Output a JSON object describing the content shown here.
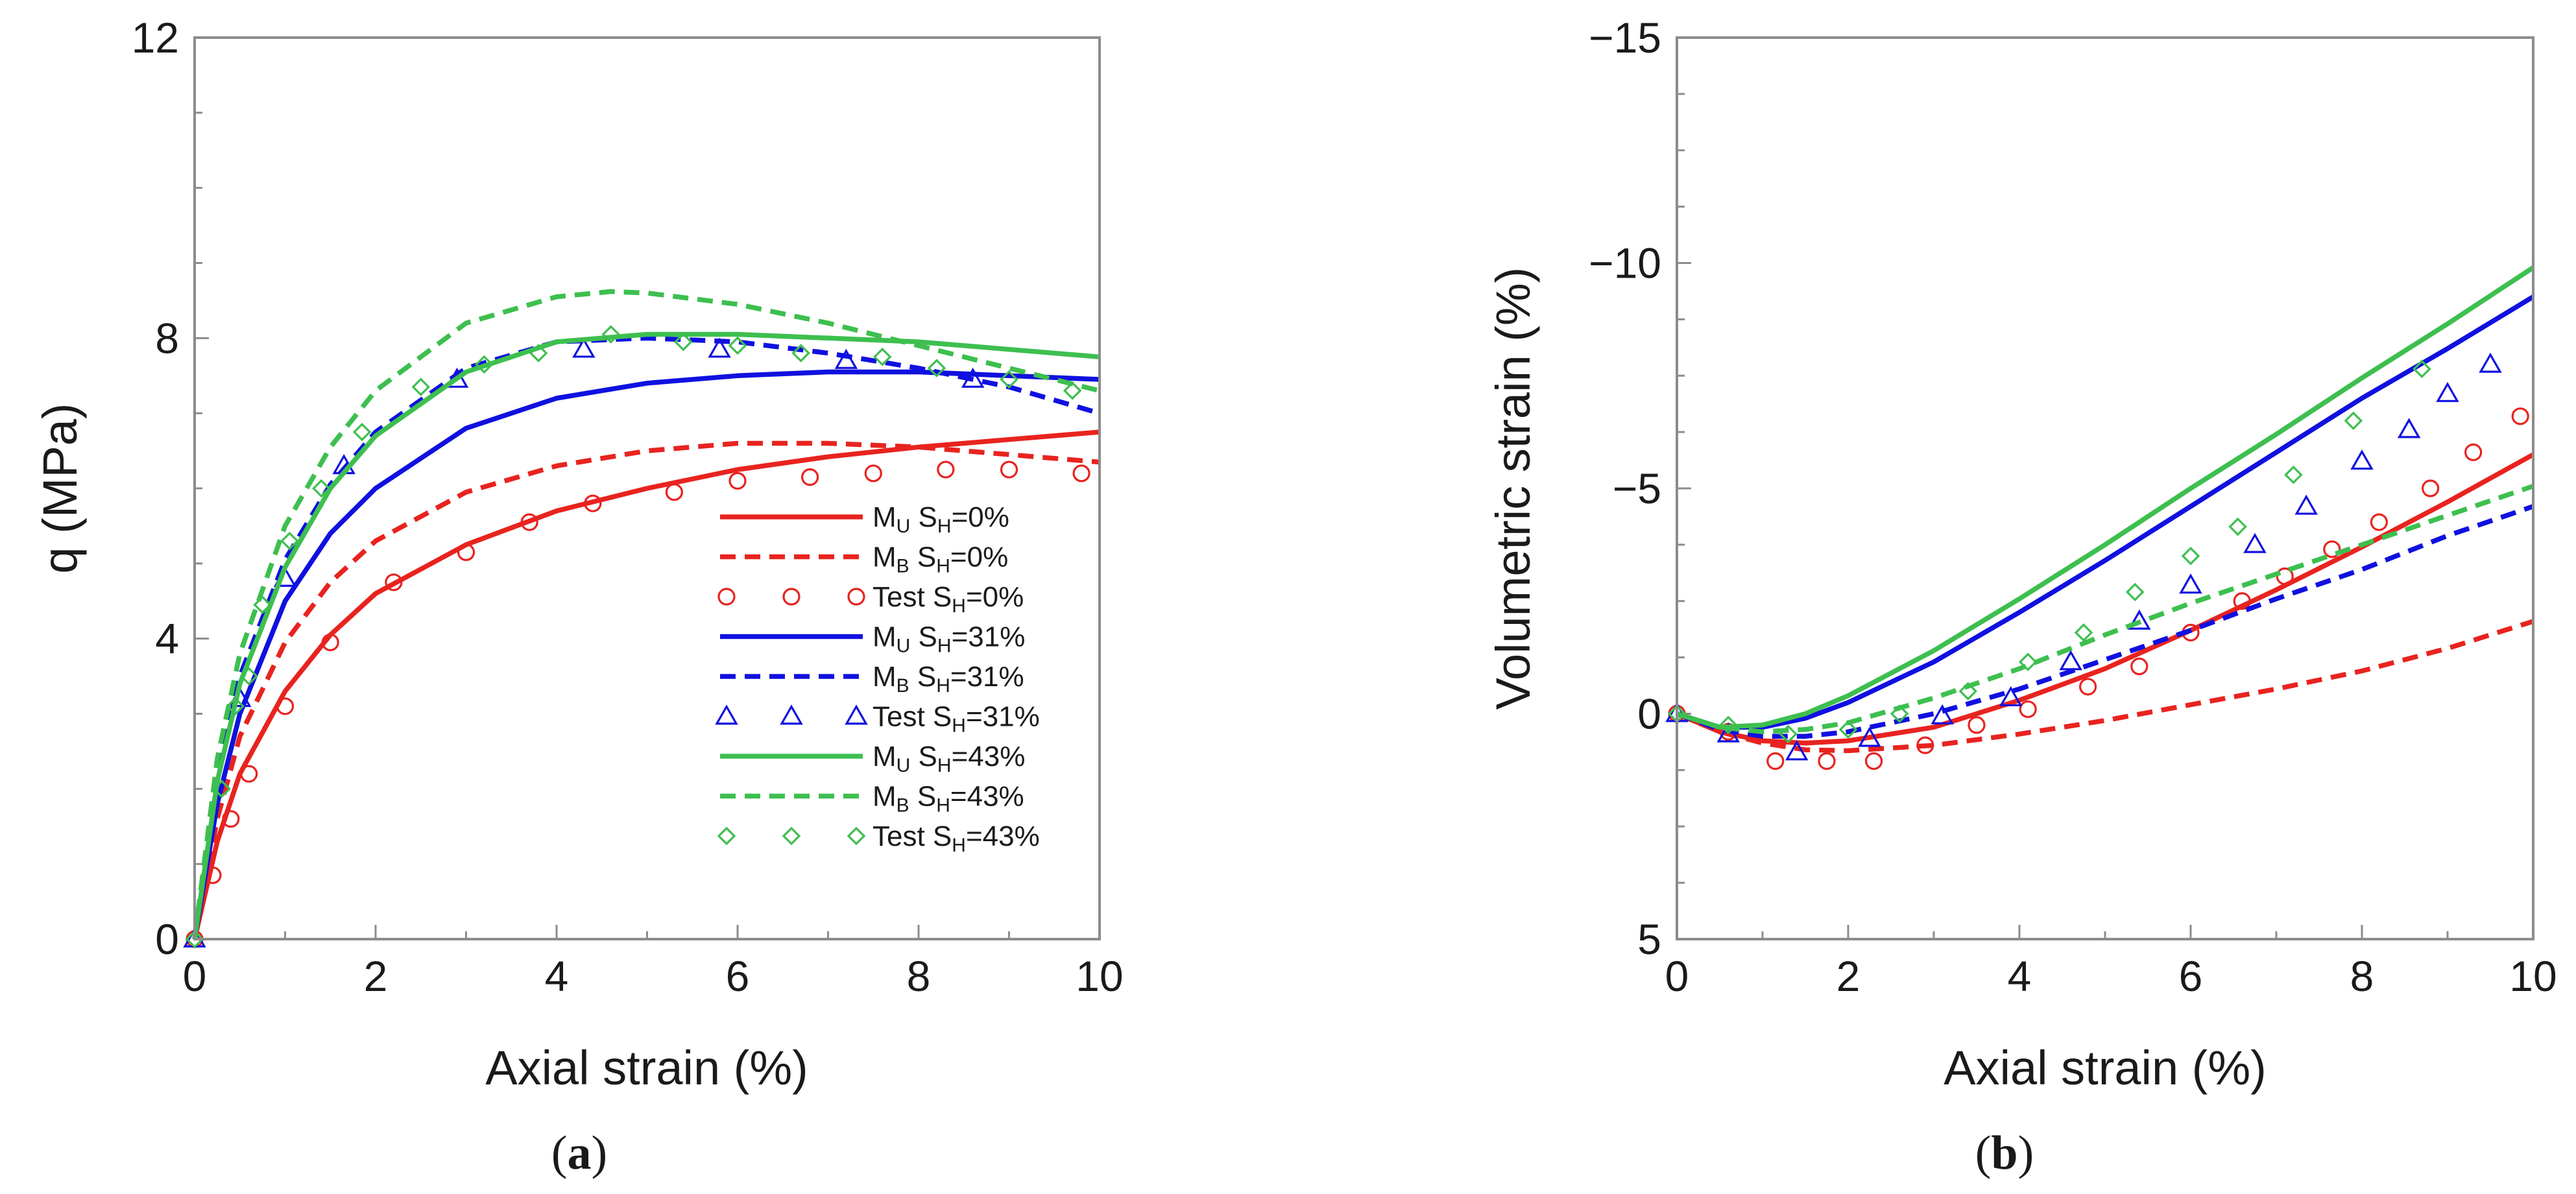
{
  "chart_data": [
    {
      "type": "line",
      "panel_label": "(a)",
      "panel_letter": "a",
      "xlabel": "Axial strain (%)",
      "ylabel": "q (MPa)",
      "xlim": [
        0,
        10
      ],
      "ylim": [
        0,
        12
      ],
      "xticks": [
        0,
        2,
        4,
        6,
        8,
        10
      ],
      "yticks": [
        0,
        4,
        8,
        12
      ],
      "x_tick_labels": [
        "0",
        "2",
        "4",
        "6",
        "8",
        "10"
      ],
      "y_tick_labels": [
        "0",
        "4",
        "8",
        "12"
      ],
      "legend_position": "lower-right",
      "series": [
        {
          "name": "MU SH=0%",
          "legend_main": "M",
          "legend_sub1": "U",
          "legend_mid": " S",
          "legend_sub2": "H",
          "legend_tail": "=0%",
          "style": "solid",
          "color": "#e8231f",
          "x": [
            0,
            0.25,
            0.5,
            1,
            1.5,
            2,
            3,
            4,
            5,
            6,
            7,
            8,
            9,
            10
          ],
          "y": [
            0,
            1.3,
            2.2,
            3.3,
            4.05,
            4.6,
            5.25,
            5.7,
            6.0,
            6.25,
            6.42,
            6.55,
            6.65,
            6.75
          ]
        },
        {
          "name": "MB SH=0%",
          "legend_main": "M",
          "legend_sub1": "B",
          "legend_mid": " S",
          "legend_sub2": "H",
          "legend_tail": "=0%",
          "style": "dashed",
          "color": "#e8231f",
          "x": [
            0,
            0.25,
            0.5,
            1,
            1.5,
            2,
            3,
            4,
            5,
            6,
            7,
            8,
            9,
            10
          ],
          "y": [
            0,
            1.6,
            2.7,
            3.95,
            4.75,
            5.3,
            5.95,
            6.3,
            6.5,
            6.6,
            6.6,
            6.55,
            6.45,
            6.35
          ]
        },
        {
          "name": "Test SH=0%",
          "legend_main": "Test",
          "legend_sub1": "",
          "legend_mid": " S",
          "legend_sub2": "H",
          "legend_tail": "=0%",
          "style": "circle",
          "color": "#e8231f",
          "x": [
            0,
            0.2,
            0.4,
            0.6,
            1.0,
            1.5,
            2.2,
            3.0,
            3.7,
            4.4,
            5.3,
            6.0,
            6.8,
            7.5,
            8.3,
            9.0,
            9.8
          ],
          "y": [
            0,
            0.85,
            1.6,
            2.2,
            3.1,
            3.95,
            4.75,
            5.15,
            5.55,
            5.8,
            5.95,
            6.1,
            6.15,
            6.2,
            6.25,
            6.25,
            6.2
          ]
        },
        {
          "name": "MU SH=31%",
          "legend_main": "M",
          "legend_sub1": "U",
          "legend_mid": " S",
          "legend_sub2": "H",
          "legend_tail": "=31%",
          "style": "solid",
          "color": "#1010e0",
          "x": [
            0,
            0.25,
            0.5,
            1,
            1.5,
            2,
            3,
            4,
            5,
            6,
            7,
            8,
            9,
            10
          ],
          "y": [
            0,
            1.8,
            3.0,
            4.5,
            5.4,
            6.0,
            6.8,
            7.2,
            7.4,
            7.5,
            7.55,
            7.55,
            7.5,
            7.45
          ]
        },
        {
          "name": "MB SH=31%",
          "legend_main": "M",
          "legend_sub1": "B",
          "legend_mid": " S",
          "legend_sub2": "H",
          "legend_tail": "=31%",
          "style": "dashed",
          "color": "#1010e0",
          "x": [
            0,
            0.25,
            0.5,
            1,
            1.5,
            2,
            3,
            4,
            5,
            6,
            7,
            8,
            9,
            10
          ],
          "y": [
            0,
            2.2,
            3.5,
            5.05,
            6.05,
            6.75,
            7.6,
            7.95,
            8.0,
            7.95,
            7.8,
            7.6,
            7.35,
            7.0
          ]
        },
        {
          "name": "Test SH=31%",
          "legend_main": "Test",
          "legend_sub1": "",
          "legend_mid": " S",
          "legend_sub2": "H",
          "legend_tail": "=31%",
          "style": "triangle",
          "color": "#1010e0",
          "x": [
            0,
            0.5,
            1.0,
            1.65,
            2.9,
            4.3,
            5.8,
            7.2,
            8.6
          ],
          "y": [
            0,
            3.2,
            4.8,
            6.3,
            7.45,
            7.85,
            7.85,
            7.7,
            7.45
          ]
        },
        {
          "name": "MU SH=43%",
          "legend_main": "M",
          "legend_sub1": "U",
          "legend_mid": " S",
          "legend_sub2": "H",
          "legend_tail": "=43%",
          "style": "solid",
          "color": "#3dbf4f",
          "x": [
            0,
            0.25,
            0.5,
            1,
            1.5,
            2,
            3,
            4,
            5,
            6,
            7,
            8,
            9,
            10
          ],
          "y": [
            0,
            2.1,
            3.4,
            4.95,
            6.0,
            6.7,
            7.55,
            7.95,
            8.05,
            8.05,
            8.0,
            7.95,
            7.85,
            7.75
          ]
        },
        {
          "name": "MB SH=43%",
          "legend_main": "M",
          "legend_sub1": "B",
          "legend_mid": " S",
          "legend_sub2": "H",
          "legend_tail": "=43%",
          "style": "dashed",
          "color": "#3dbf4f",
          "x": [
            0,
            0.25,
            0.5,
            1,
            1.5,
            2,
            3,
            4,
            4.6,
            5,
            6,
            7,
            8,
            9,
            10
          ],
          "y": [
            0,
            2.4,
            3.8,
            5.5,
            6.55,
            7.3,
            8.2,
            8.55,
            8.62,
            8.6,
            8.45,
            8.2,
            7.9,
            7.6,
            7.3
          ]
        },
        {
          "name": "Test SH=43%",
          "legend_main": "Test",
          "legend_sub1": "",
          "legend_mid": " S",
          "legend_sub2": "H",
          "legend_tail": "=43%",
          "style": "diamond",
          "color": "#3dbf4f",
          "x": [
            0,
            0.3,
            0.45,
            0.6,
            0.75,
            1.05,
            1.4,
            1.85,
            2.5,
            3.2,
            3.8,
            4.6,
            5.4,
            6.0,
            6.7,
            7.6,
            8.2,
            9.0,
            9.7
          ],
          "y": [
            0,
            2.0,
            3.1,
            3.5,
            4.45,
            5.3,
            6.0,
            6.75,
            7.35,
            7.65,
            7.8,
            8.05,
            7.95,
            7.9,
            7.8,
            7.75,
            7.6,
            7.45,
            7.3
          ]
        }
      ]
    },
    {
      "type": "line",
      "panel_label": "(b)",
      "panel_letter": "b",
      "xlabel": "Axial strain (%)",
      "ylabel": "Volumetric strain (%)",
      "xlim": [
        0,
        10
      ],
      "ylim": [
        5,
        -15
      ],
      "y_inverted": true,
      "xticks": [
        0,
        2,
        4,
        6,
        8,
        10
      ],
      "yticks": [
        5,
        0,
        -5,
        -10,
        -15
      ],
      "x_tick_labels": [
        "0",
        "2",
        "4",
        "6",
        "8",
        "10"
      ],
      "y_tick_labels": [
        "5",
        "0",
        "−5",
        "−10",
        "−15"
      ],
      "series": [
        {
          "name": "MU SH=0%",
          "style": "solid",
          "color": "#e8231f",
          "x": [
            0,
            0.5,
            1,
            1.5,
            2,
            3,
            4,
            5,
            6,
            7,
            8,
            9,
            10
          ],
          "y": [
            0,
            0.4,
            0.6,
            0.65,
            0.6,
            0.3,
            -0.3,
            -1.0,
            -1.85,
            -2.75,
            -3.7,
            -4.7,
            -5.75
          ]
        },
        {
          "name": "MB SH=0%",
          "style": "dashed",
          "color": "#e8231f",
          "x": [
            0,
            0.5,
            1,
            1.5,
            2,
            3,
            4,
            5,
            6,
            7,
            8,
            9,
            10
          ],
          "y": [
            0,
            0.4,
            0.65,
            0.8,
            0.82,
            0.7,
            0.45,
            0.15,
            -0.2,
            -0.55,
            -0.95,
            -1.45,
            -2.05
          ]
        },
        {
          "name": "Test SH=0%",
          "style": "circle",
          "color": "#e8231f",
          "x": [
            0,
            0.6,
            1.15,
            1.75,
            2.3,
            2.9,
            3.5,
            4.1,
            4.8,
            5.4,
            6.0,
            6.6,
            7.1,
            7.65,
            8.2,
            8.8,
            9.3,
            9.85
          ],
          "y": [
            0,
            0.4,
            1.05,
            1.05,
            1.05,
            0.7,
            0.25,
            -0.1,
            -0.6,
            -1.05,
            -1.8,
            -2.5,
            -3.05,
            -3.65,
            -4.25,
            -5.0,
            -5.8,
            -6.6
          ]
        },
        {
          "name": "MU SH=31%",
          "style": "solid",
          "color": "#1010e0",
          "x": [
            0,
            0.5,
            1,
            1.5,
            2,
            3,
            4,
            5,
            6,
            7,
            8,
            9,
            10
          ],
          "y": [
            0,
            0.3,
            0.3,
            0.1,
            -0.25,
            -1.15,
            -2.25,
            -3.4,
            -4.6,
            -5.8,
            -7.0,
            -8.1,
            -9.25
          ]
        },
        {
          "name": "MB SH=31%",
          "style": "dashed",
          "color": "#1010e0",
          "x": [
            0,
            0.5,
            1,
            1.5,
            2,
            3,
            4,
            5,
            6,
            7,
            8,
            9,
            10
          ],
          "y": [
            0,
            0.35,
            0.5,
            0.5,
            0.4,
            0.0,
            -0.55,
            -1.2,
            -1.85,
            -2.55,
            -3.2,
            -3.95,
            -4.6
          ]
        },
        {
          "name": "Test SH=31%",
          "style": "triangle",
          "color": "#1010e0",
          "x": [
            0,
            0.6,
            1.4,
            2.25,
            3.1,
            3.9,
            4.6,
            5.4,
            6.0,
            6.75,
            7.35,
            8.0,
            8.55,
            9.0,
            9.5
          ],
          "y": [
            0,
            0.45,
            0.85,
            0.55,
            0.05,
            -0.35,
            -1.15,
            -2.05,
            -2.85,
            -3.75,
            -4.6,
            -5.6,
            -6.3,
            -7.1,
            -7.75
          ]
        },
        {
          "name": "MU SH=43%",
          "style": "solid",
          "color": "#3dbf4f",
          "x": [
            0,
            0.5,
            1,
            1.5,
            2,
            3,
            4,
            5,
            6,
            7,
            8,
            9,
            10
          ],
          "y": [
            0,
            0.3,
            0.25,
            0.0,
            -0.4,
            -1.4,
            -2.55,
            -3.75,
            -5.0,
            -6.2,
            -7.45,
            -8.65,
            -9.9
          ]
        },
        {
          "name": "MB SH=43%",
          "style": "dashed",
          "color": "#3dbf4f",
          "x": [
            0,
            0.5,
            1,
            1.5,
            2,
            3,
            4,
            5,
            6,
            7,
            8,
            9,
            10
          ],
          "y": [
            0,
            0.3,
            0.4,
            0.35,
            0.2,
            -0.35,
            -1.0,
            -1.75,
            -2.45,
            -3.1,
            -3.75,
            -4.4,
            -5.05
          ]
        },
        {
          "name": "Test SH=43%",
          "style": "diamond",
          "color": "#3dbf4f",
          "x": [
            0,
            0.6,
            1.3,
            2.0,
            2.6,
            3.4,
            4.1,
            4.75,
            5.35,
            6.0,
            6.55,
            7.2,
            7.9,
            8.7
          ],
          "y": [
            0,
            0.25,
            0.45,
            0.35,
            0.0,
            -0.5,
            -1.15,
            -1.8,
            -2.7,
            -3.5,
            -4.15,
            -5.3,
            -6.5,
            -7.65
          ]
        }
      ]
    }
  ]
}
